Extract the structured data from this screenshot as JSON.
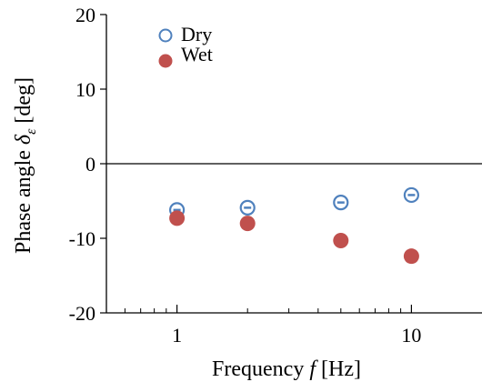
{
  "chart_data": {
    "type": "scatter",
    "xlabel": {
      "prefix": "Frequency ",
      "var": "f",
      "suffix": " [Hz]"
    },
    "ylabel": {
      "prefix": "Phase angle ",
      "var": "δ",
      "sub": "ε",
      "suffix": " [deg]"
    },
    "x_scale": "log",
    "xlim": [
      0.5,
      20
    ],
    "ylim": [
      -20,
      20
    ],
    "x_ticks": [
      1,
      10
    ],
    "x_tick_labels": [
      "1",
      "10"
    ],
    "y_ticks": [
      20,
      10,
      0,
      -10,
      -20
    ],
    "y_tick_labels": [
      "20",
      "10",
      "0",
      "-10",
      "-20"
    ],
    "grid": false,
    "zero_line": true,
    "legend_position": "top-left",
    "series": [
      {
        "name": "Dry",
        "marker": "open-circle",
        "color": "#4f81bd",
        "x": [
          1,
          2,
          5,
          10
        ],
        "y": [
          -6.2,
          -5.9,
          -5.2,
          -4.2
        ]
      },
      {
        "name": "Wet",
        "marker": "filled-circle",
        "color": "#c0504d",
        "x": [
          1,
          2,
          5,
          10
        ],
        "y": [
          -7.3,
          -8.0,
          -10.3,
          -12.4
        ]
      }
    ]
  }
}
